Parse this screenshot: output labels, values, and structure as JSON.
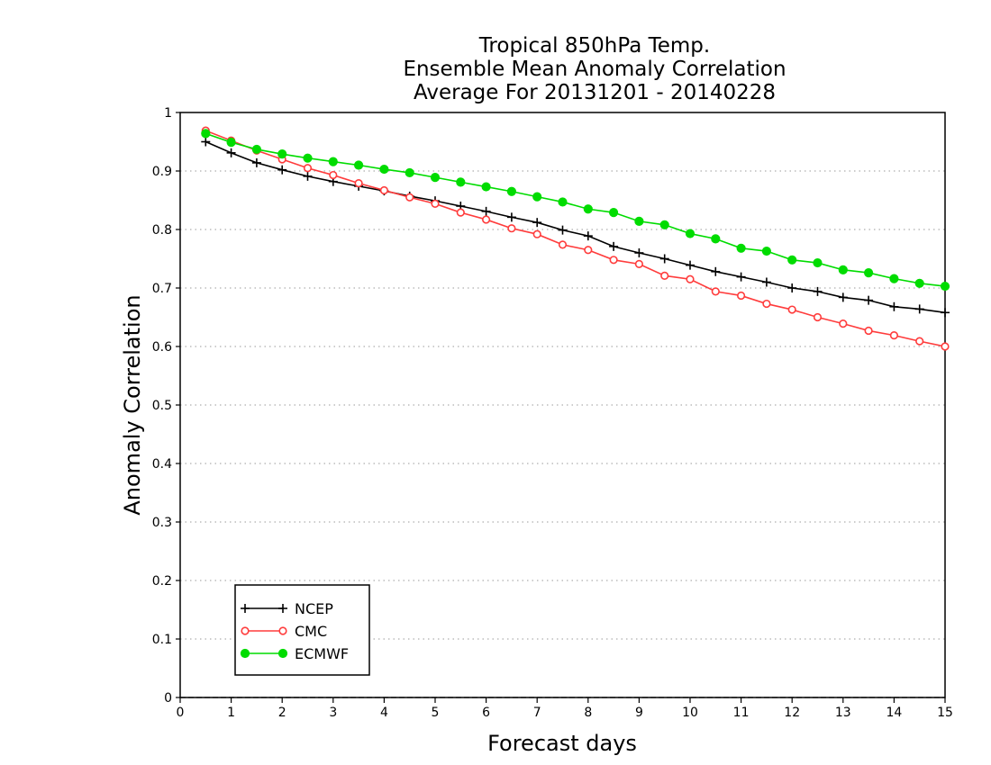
{
  "chart_data": {
    "type": "line",
    "title": [
      "Tropical 850hPa Temp.",
      "Ensemble Mean Anomaly Correlation",
      "Average For 20131201 - 20140228"
    ],
    "xlabel": "Forecast days",
    "ylabel": "Anomaly Correlation",
    "xlim": [
      0,
      15
    ],
    "ylim": [
      0,
      1
    ],
    "xticks": [
      "0",
      "1",
      "2",
      "3",
      "4",
      "5",
      "6",
      "7",
      "8",
      "9",
      "10",
      "11",
      "12",
      "13",
      "14",
      "15"
    ],
    "yticks": [
      "0",
      "0.1",
      "0.2",
      "0.3",
      "0.4",
      "0.5",
      "0.6",
      "0.7",
      "0.8",
      "0.9",
      "1"
    ],
    "grid": "horizontal-dotted",
    "legend_position": "bottom-left",
    "x": [
      0.5,
      1,
      1.5,
      2,
      2.5,
      3,
      3.5,
      4,
      4.5,
      5,
      5.5,
      6,
      6.5,
      7,
      7.5,
      8,
      8.5,
      9,
      9.5,
      10,
      10.5,
      11,
      11.5,
      12,
      12.5,
      13,
      13.5,
      14,
      14.5,
      15
    ],
    "series": [
      {
        "name": "NCEP",
        "color": "#000000",
        "marker": "plus",
        "values": [
          0.95,
          0.931,
          0.914,
          0.902,
          0.891,
          0.882,
          0.874,
          0.866,
          0.857,
          0.849,
          0.84,
          0.831,
          0.821,
          0.812,
          0.799,
          0.789,
          0.771,
          0.76,
          0.75,
          0.739,
          0.728,
          0.719,
          0.71,
          0.7,
          0.694,
          0.684,
          0.679,
          0.668,
          0.664,
          0.658
        ]
      },
      {
        "name": "CMC",
        "color": "#ff3c3c",
        "marker": "open-circle",
        "values": [
          0.969,
          0.952,
          0.935,
          0.92,
          0.905,
          0.893,
          0.879,
          0.867,
          0.855,
          0.844,
          0.829,
          0.817,
          0.802,
          0.792,
          0.774,
          0.765,
          0.748,
          0.741,
          0.721,
          0.715,
          0.694,
          0.687,
          0.673,
          0.663,
          0.65,
          0.639,
          0.627,
          0.619,
          0.609,
          0.6
        ]
      },
      {
        "name": "ECMWF",
        "color": "#00dc00",
        "marker": "filled-circle",
        "values": [
          0.964,
          0.949,
          0.937,
          0.929,
          0.922,
          0.916,
          0.91,
          0.903,
          0.897,
          0.889,
          0.881,
          0.873,
          0.865,
          0.856,
          0.847,
          0.835,
          0.829,
          0.814,
          0.808,
          0.793,
          0.784,
          0.768,
          0.763,
          0.748,
          0.743,
          0.731,
          0.726,
          0.716,
          0.708,
          0.703
        ]
      }
    ]
  }
}
